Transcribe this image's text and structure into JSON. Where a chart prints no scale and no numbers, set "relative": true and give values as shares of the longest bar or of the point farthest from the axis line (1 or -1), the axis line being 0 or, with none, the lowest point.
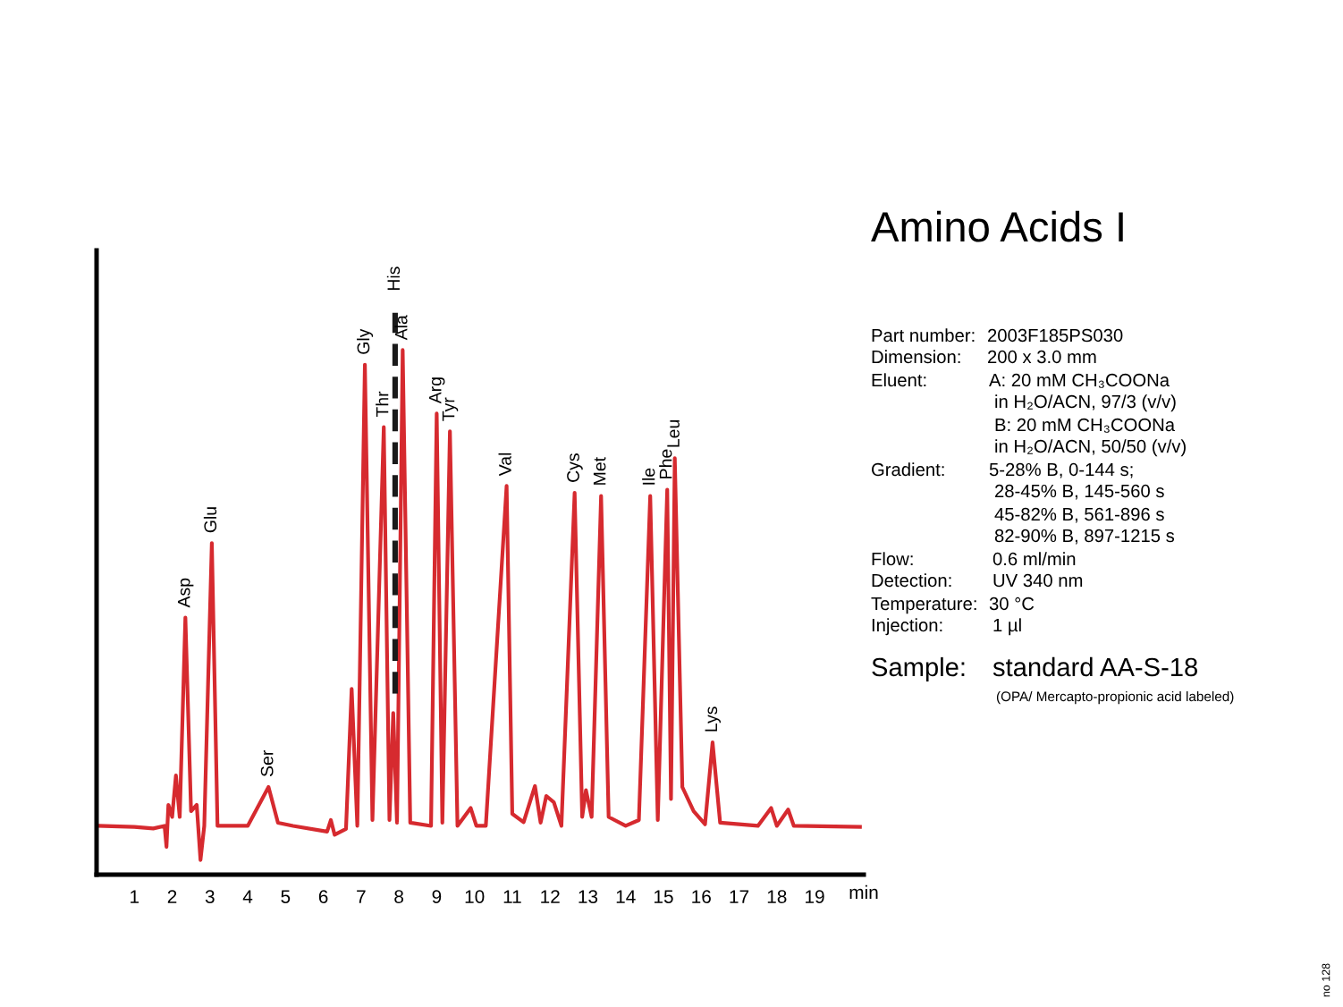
{
  "chart_data": {
    "type": "line",
    "title": "Amino Acids I",
    "xlabel": "min",
    "relative": true,
    "tick_labels": "x",
    "grid": false,
    "xlim": [
      0,
      20.3
    ],
    "xticks": [
      1,
      2,
      3,
      4,
      5,
      6,
      7,
      8,
      9,
      10,
      11,
      12,
      13,
      14,
      15,
      16,
      17,
      18,
      19
    ],
    "x": [
      0.05,
      1.0,
      1.5,
      1.8,
      1.85,
      1.9,
      2.0,
      2.1,
      2.2,
      2.35,
      2.5,
      2.65,
      2.75,
      2.85,
      3.05,
      3.2,
      4.0,
      4.55,
      4.8,
      5.2,
      6.1,
      6.2,
      6.3,
      6.6,
      6.75,
      6.9,
      7.1,
      7.3,
      7.6,
      7.75,
      7.85,
      7.95,
      8.1,
      8.3,
      8.85,
      9.0,
      9.15,
      9.35,
      9.55,
      9.9,
      10.05,
      10.3,
      10.85,
      11.0,
      11.3,
      11.6,
      11.75,
      11.9,
      12.1,
      12.3,
      12.65,
      12.85,
      12.95,
      13.1,
      13.35,
      13.55,
      14.0,
      14.35,
      14.65,
      14.85,
      15.1,
      15.2,
      15.3,
      15.5,
      15.8,
      16.1,
      16.3,
      16.5,
      17.5,
      17.85,
      18.0,
      18.3,
      18.45,
      20.2
    ],
    "series": [
      {
        "color": "#d62a2f",
        "values": [
          0.093,
          0.091,
          0.088,
          0.093,
          0.053,
          0.133,
          0.11,
          0.189,
          0.11,
          0.49,
          0.121,
          0.133,
          0.028,
          0.093,
          0.632,
          0.093,
          0.093,
          0.167,
          0.099,
          0.093,
          0.082,
          0.104,
          0.076,
          0.087,
          0.354,
          0.093,
          0.972,
          0.104,
          0.853,
          0.104,
          0.308,
          0.099,
          1.0,
          0.099,
          0.093,
          0.879,
          0.099,
          0.845,
          0.093,
          0.127,
          0.093,
          0.093,
          0.741,
          0.116,
          0.1,
          0.169,
          0.099,
          0.15,
          0.138,
          0.093,
          0.728,
          0.11,
          0.161,
          0.11,
          0.722,
          0.11,
          0.093,
          0.104,
          0.722,
          0.104,
          0.734,
          0.144,
          0.794,
          0.167,
          0.121,
          0.096,
          0.252,
          0.099,
          0.093,
          0.127,
          0.093,
          0.124,
          0.093,
          0.091
        ]
      }
    ],
    "ref_lines": [
      {
        "axis": "x",
        "value": 7.9,
        "label": "His",
        "color": "#1a1a1a",
        "line_style": "dashed"
      }
    ],
    "annotations": [
      {
        "text": "Asp",
        "x": 2.35,
        "y": 0.49
      },
      {
        "text": "Glu",
        "x": 3.05,
        "y": 0.632
      },
      {
        "text": "Ser",
        "x": 4.55,
        "y": 0.167
      },
      {
        "text": "Gly",
        "x": 7.1,
        "y": 0.972
      },
      {
        "text": "Thr",
        "x": 7.6,
        "y": 0.853
      },
      {
        "text": "Ala",
        "x": 8.1,
        "y": 1.0
      },
      {
        "text": "Arg",
        "x": 9.0,
        "y": 0.879
      },
      {
        "text": "Tyr",
        "x": 9.35,
        "y": 0.845
      },
      {
        "text": "Val",
        "x": 10.85,
        "y": 0.741
      },
      {
        "text": "Cys",
        "x": 12.65,
        "y": 0.728
      },
      {
        "text": "Met",
        "x": 13.35,
        "y": 0.722
      },
      {
        "text": "Ile",
        "x": 14.65,
        "y": 0.722
      },
      {
        "text": "Phe",
        "x": 15.1,
        "y": 0.734
      },
      {
        "text": "Leu",
        "x": 15.3,
        "y": 0.794
      },
      {
        "text": "Lys",
        "x": 16.3,
        "y": 0.252
      },
      "Part number:",
      "2003F185PS030",
      "Dimension:",
      "200 x 3.0 mm",
      "Eluent:",
      "A: 20 mM CH₃COONa",
      "in H₂O/ACN, 97/3 (v/v)",
      "B: 20 mM CH₃COONa",
      "in H₂O/ACN, 50/50 (v/v)",
      "Gradient:",
      "5-28% B, 0-144 s;",
      "28-45% B, 145-560 s",
      "45-82% B, 561-896 s",
      "82-90% B, 897-1215 s",
      "Flow:",
      "0.6 ml/min",
      "Detection:",
      "UV 340 nm",
      "Temperature:",
      "30 °C",
      "Injection:",
      "1 µl",
      "Sample:",
      "standard AA-S-18",
      "(OPA/ Mercapto-propionic acid labeled)",
      "no 128"
    ]
  }
}
